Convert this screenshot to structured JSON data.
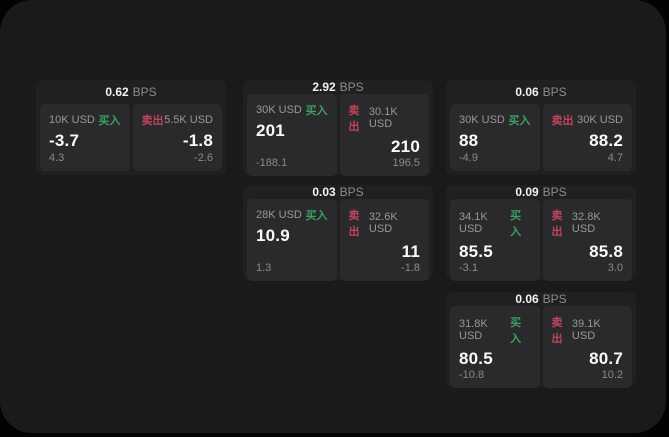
{
  "labels": {
    "bps_unit": "BPS",
    "buy": "买入",
    "sell": "卖出"
  },
  "colors": {
    "page_bg": "#030303",
    "surface_bg": "#1a1a1b",
    "card_bg": "#202022",
    "panel_bg": "#2a2a2c",
    "buy_green": "#3d9e62",
    "sell_red": "#c0445c",
    "text_white": "#fafafa",
    "text_muted": "#98989b"
  },
  "cards": [
    {
      "row": 1,
      "col": 1,
      "bps": "0.62",
      "buy": {
        "amount": "10K USD",
        "price": "-3.7",
        "delta": "4.3"
      },
      "sell": {
        "amount": "5.5K USD",
        "price": "-1.8",
        "delta": "-2.6"
      }
    },
    {
      "row": 1,
      "col": 2,
      "bps": "2.92",
      "buy": {
        "amount": "30K USD",
        "price": "201",
        "delta": "-188.1"
      },
      "sell": {
        "amount": "30.1K USD",
        "price": "210",
        "delta": "196.5"
      }
    },
    {
      "row": 1,
      "col": 3,
      "bps": "0.06",
      "buy": {
        "amount": "30K USD",
        "price": "88",
        "delta": "-4.9"
      },
      "sell": {
        "amount": "30K USD",
        "price": "88.2",
        "delta": "4.7"
      }
    },
    {
      "row": 2,
      "col": 2,
      "bps": "0.03",
      "buy": {
        "amount": "28K USD",
        "price": "10.9",
        "delta": "1.3"
      },
      "sell": {
        "amount": "32.6K USD",
        "price": "11",
        "delta": "-1.8"
      }
    },
    {
      "row": 2,
      "col": 3,
      "bps": "0.09",
      "buy": {
        "amount": "34.1K USD",
        "price": "85.5",
        "delta": "-3.1"
      },
      "sell": {
        "amount": "32.8K USD",
        "price": "85.8",
        "delta": "3.0"
      }
    },
    {
      "row": 3,
      "col": 3,
      "bps": "0.06",
      "buy": {
        "amount": "31.8K USD",
        "price": "80.5",
        "delta": "-10.8"
      },
      "sell": {
        "amount": "39.1K USD",
        "price": "80.7",
        "delta": "10.2"
      }
    }
  ]
}
